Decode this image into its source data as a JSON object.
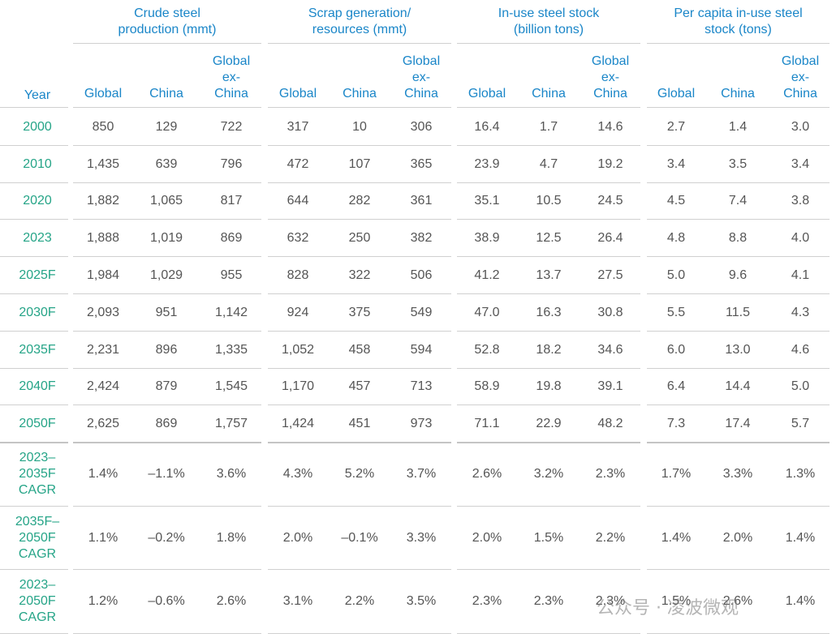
{
  "table": {
    "corner": "Year",
    "groups": [
      "Crude steel\nproduction (mmt)",
      "Scrap generation/\nresources (mmt)",
      "In-use steel stock\n(billion tons)",
      "Per capita in-use steel\nstock (tons)"
    ],
    "subheaders": [
      "Global",
      "China",
      "Global\nex-\nChina"
    ],
    "rows": [
      [
        "2000",
        "850",
        "129",
        "722",
        "317",
        "10",
        "306",
        "16.4",
        "1.7",
        "14.6",
        "2.7",
        "1.4",
        "3.0"
      ],
      [
        "2010",
        "1,435",
        "639",
        "796",
        "472",
        "107",
        "365",
        "23.9",
        "4.7",
        "19.2",
        "3.4",
        "3.5",
        "3.4"
      ],
      [
        "2020",
        "1,882",
        "1,065",
        "817",
        "644",
        "282",
        "361",
        "35.1",
        "10.5",
        "24.5",
        "4.5",
        "7.4",
        "3.8"
      ],
      [
        "2023",
        "1,888",
        "1,019",
        "869",
        "632",
        "250",
        "382",
        "38.9",
        "12.5",
        "26.4",
        "4.8",
        "8.8",
        "4.0"
      ],
      [
        "2025F",
        "1,984",
        "1,029",
        "955",
        "828",
        "322",
        "506",
        "41.2",
        "13.7",
        "27.5",
        "5.0",
        "9.6",
        "4.1"
      ],
      [
        "2030F",
        "2,093",
        "951",
        "1,142",
        "924",
        "375",
        "549",
        "47.0",
        "16.3",
        "30.8",
        "5.5",
        "11.5",
        "4.3"
      ],
      [
        "2035F",
        "2,231",
        "896",
        "1,335",
        "1,052",
        "458",
        "594",
        "52.8",
        "18.2",
        "34.6",
        "6.0",
        "13.0",
        "4.6"
      ],
      [
        "2040F",
        "2,424",
        "879",
        "1,545",
        "1,170",
        "457",
        "713",
        "58.9",
        "19.8",
        "39.1",
        "6.4",
        "14.4",
        "5.0"
      ],
      [
        "2050F",
        "2,625",
        "869",
        "1,757",
        "1,424",
        "451",
        "973",
        "71.1",
        "22.9",
        "48.2",
        "7.3",
        "17.4",
        "5.7"
      ],
      [
        "2023–\n2035F\nCAGR",
        "1.4%",
        "–1.1%",
        "3.6%",
        "4.3%",
        "5.2%",
        "3.7%",
        "2.6%",
        "3.2%",
        "2.3%",
        "1.7%",
        "3.3%",
        "1.3%"
      ],
      [
        "2035F–\n2050F\nCAGR",
        "1.1%",
        "–0.2%",
        "1.8%",
        "2.0%",
        "–0.1%",
        "3.3%",
        "2.0%",
        "1.5%",
        "2.2%",
        "1.4%",
        "2.0%",
        "1.4%"
      ],
      [
        "2023–\n2050F\nCAGR",
        "1.2%",
        "–0.6%",
        "2.6%",
        "3.1%",
        "2.2%",
        "3.5%",
        "2.3%",
        "2.3%",
        "2.3%",
        "1.5%",
        "2.6%",
        "1.4%"
      ]
    ]
  },
  "watermark": "公众号 · 凌波微观"
}
